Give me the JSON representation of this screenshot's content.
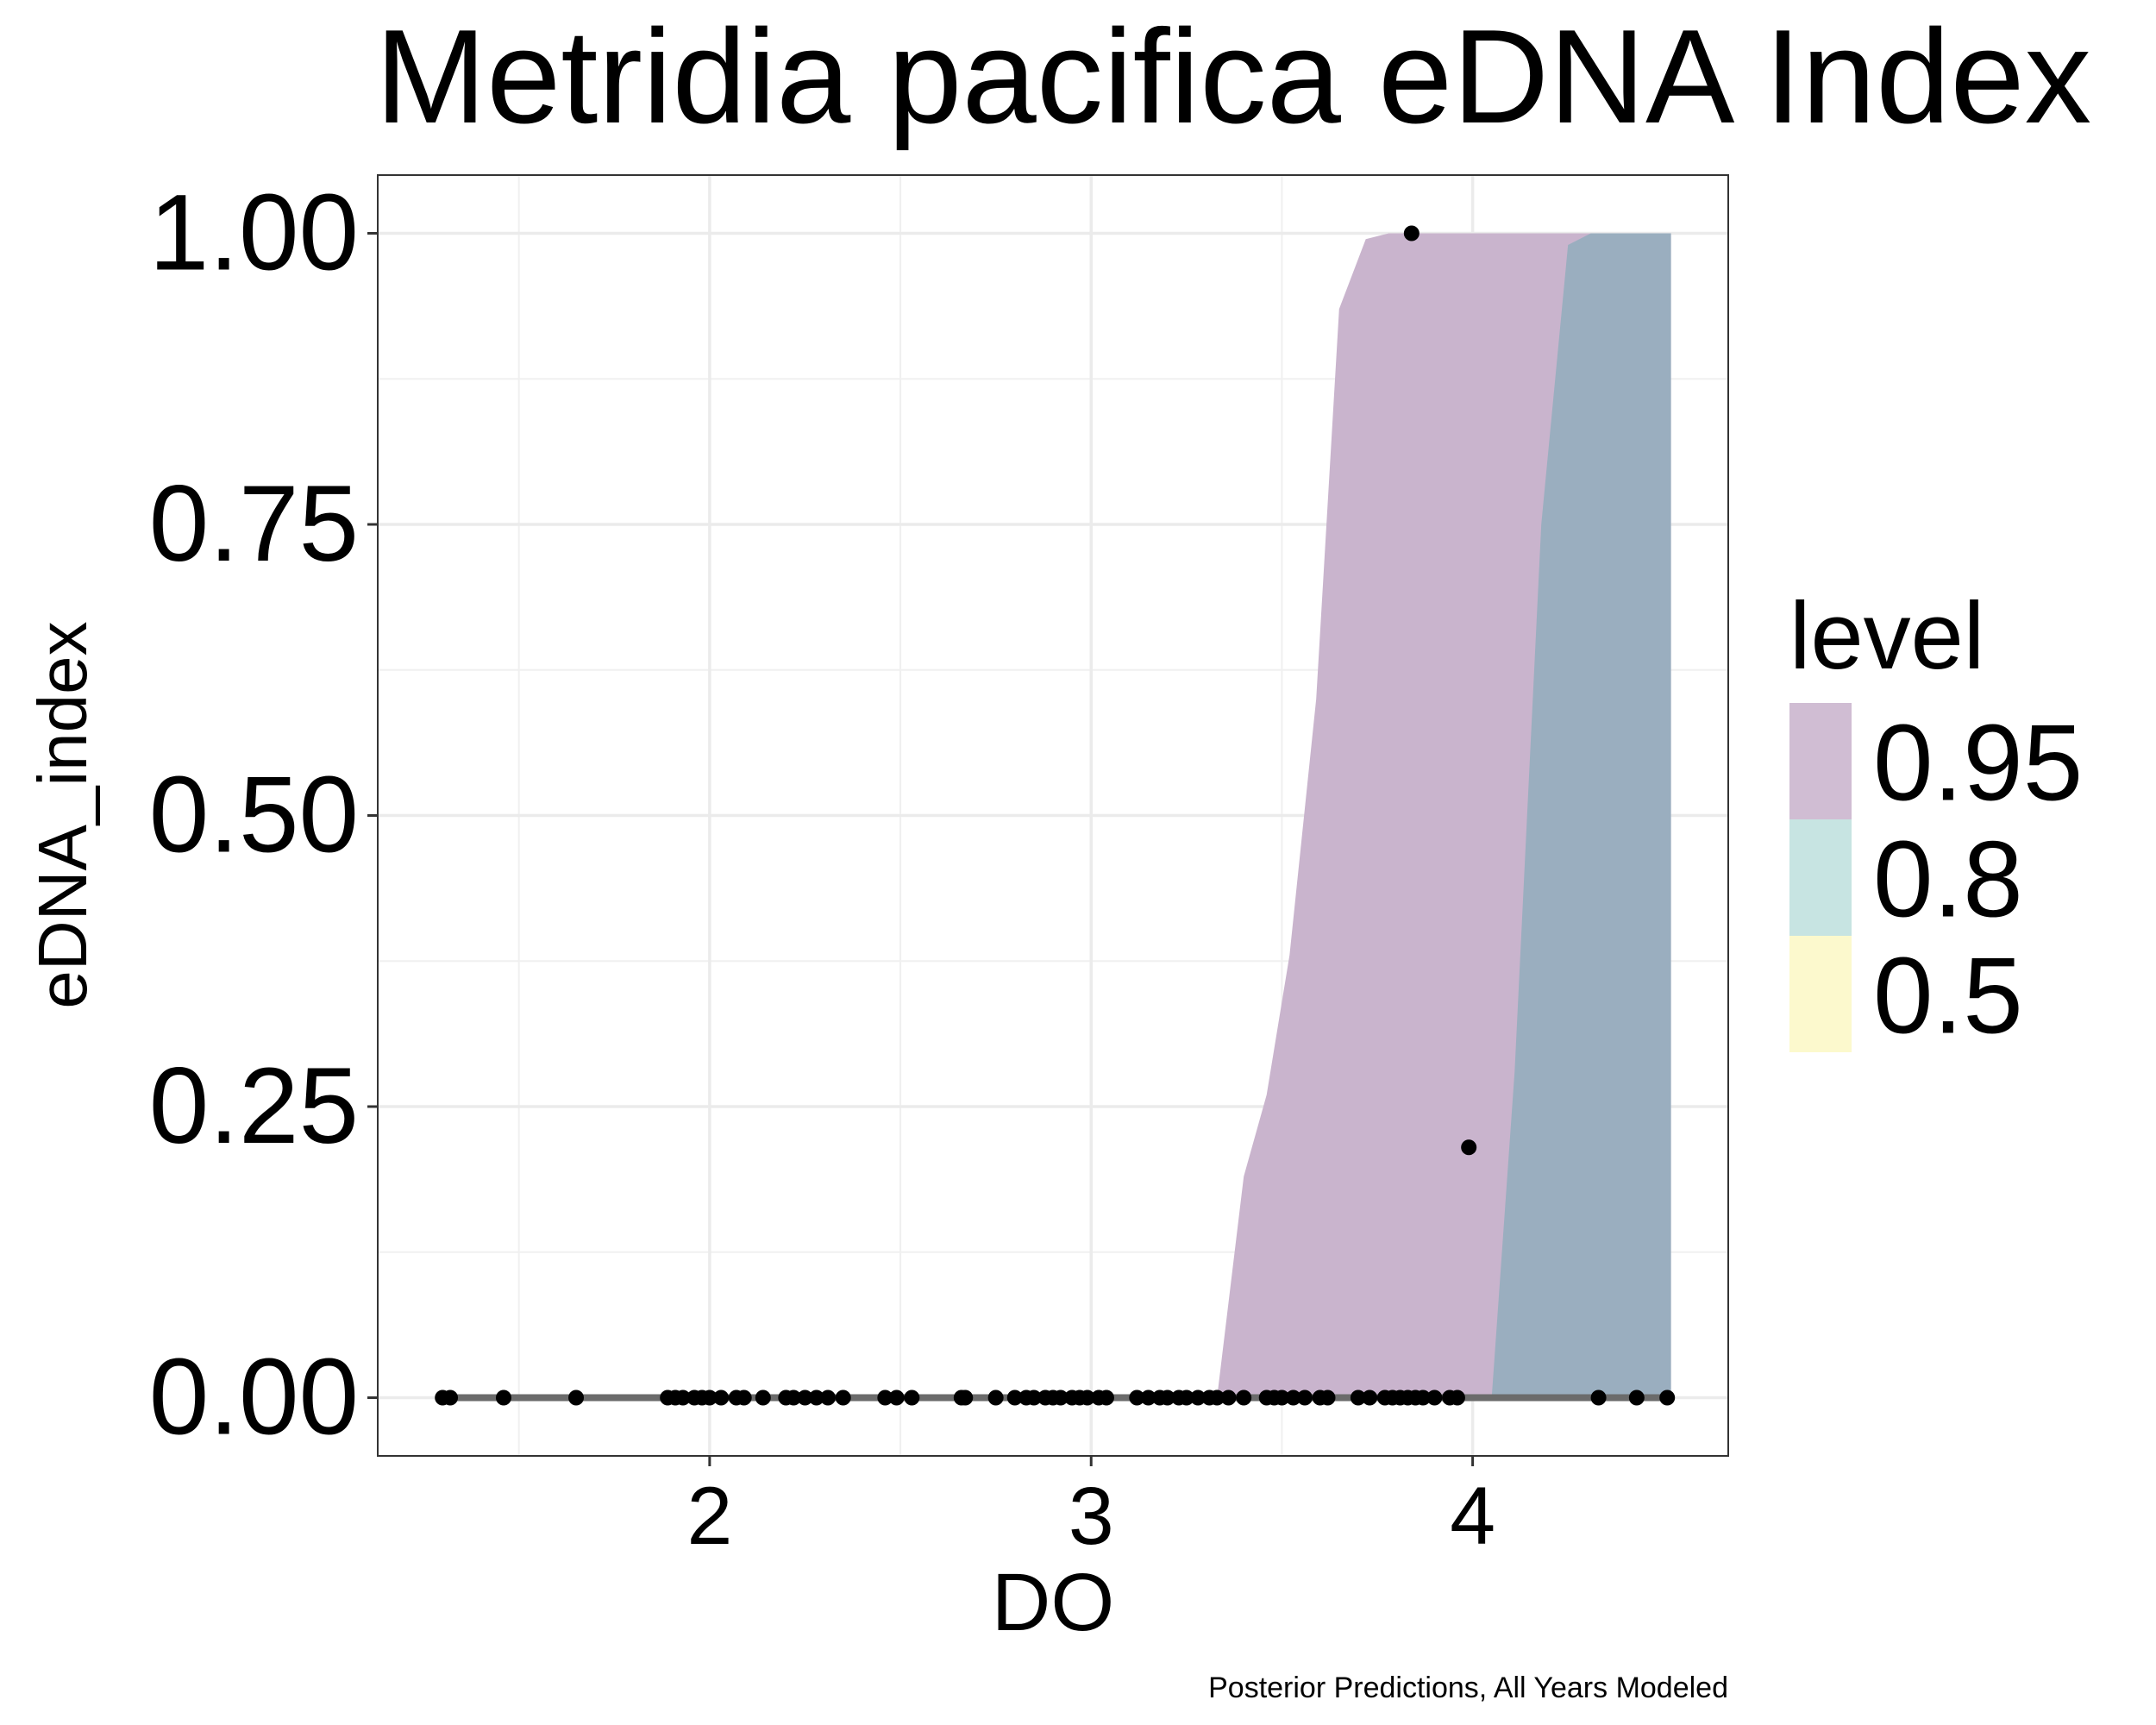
{
  "chart_data": {
    "type": "area",
    "title": "Metridia pacifica eDNA Index",
    "xlabel": "DO",
    "ylabel": "eDNA_index",
    "caption": "Posterior Predictions, All Years Modeled",
    "xlim": [
      1.13,
      4.67
    ],
    "ylim": [
      -0.05,
      1.05
    ],
    "x_ticks": [
      2,
      3,
      4
    ],
    "x_tick_labels": [
      "2",
      "3",
      "4"
    ],
    "y_ticks": [
      0,
      0.25,
      0.5,
      0.75,
      1
    ],
    "y_tick_labels": [
      "0.00",
      "0.25",
      "0.50",
      "0.75",
      "1.00"
    ],
    "grid": true,
    "legend": {
      "title": "level",
      "position": "right",
      "items": [
        {
          "label": "0.95",
          "color": "#d0bdd3"
        },
        {
          "label": "0.8",
          "color": "#c7e4e2"
        },
        {
          "label": "0.5",
          "color": "#fcf9cd"
        }
      ]
    },
    "bands": [
      {
        "level": "0.95",
        "color": "#c9b4cd",
        "x": [
          3.33,
          3.4,
          3.46,
          3.52,
          3.59,
          3.65,
          3.72,
          3.78,
          4.0,
          4.52
        ],
        "upper": [
          0.0,
          0.19,
          0.26,
          0.38,
          0.6,
          0.935,
          0.995,
          1.0,
          1.0,
          1.0
        ],
        "lower": [
          0.0,
          0.0,
          0.0,
          0.0,
          0.0,
          0.0,
          0.0,
          0.0,
          0.0,
          0.0
        ]
      },
      {
        "level": "0.8",
        "color": "#9aaebf",
        "x": [
          4.05,
          4.11,
          4.18,
          4.25,
          4.31,
          4.52
        ],
        "upper": [
          0.0,
          0.28,
          0.75,
          0.99,
          1.0,
          1.0
        ],
        "lower": [
          0.0,
          0.0,
          0.0,
          0.0,
          0.0,
          0.0
        ]
      }
    ],
    "median_line": {
      "x": [
        1.3,
        4.52
      ],
      "y": [
        0.0,
        0.0
      ],
      "color": "#6b6b6b"
    },
    "points": {
      "x": [
        1.3,
        1.32,
        1.46,
        1.65,
        1.89,
        1.91,
        1.93,
        1.96,
        1.98,
        2.0,
        2.03,
        2.07,
        2.09,
        2.14,
        2.2,
        2.22,
        2.25,
        2.28,
        2.31,
        2.35,
        2.46,
        2.49,
        2.53,
        2.66,
        2.67,
        2.75,
        2.8,
        2.83,
        2.85,
        2.88,
        2.9,
        2.92,
        2.95,
        2.97,
        2.99,
        3.02,
        3.04,
        3.12,
        3.15,
        3.18,
        3.2,
        3.23,
        3.25,
        3.28,
        3.31,
        3.33,
        3.36,
        3.4,
        3.46,
        3.48,
        3.5,
        3.53,
        3.56,
        3.6,
        3.62,
        3.7,
        3.73,
        3.77,
        3.79,
        3.81,
        3.83,
        3.85,
        3.87,
        3.9,
        3.94,
        3.96,
        4.33,
        4.43,
        4.51,
        3.84,
        3.99
      ],
      "y": [
        0,
        0,
        0,
        0,
        0,
        0,
        0,
        0,
        0,
        0,
        0,
        0,
        0,
        0,
        0,
        0,
        0,
        0,
        0,
        0,
        0,
        0,
        0,
        0,
        0,
        0,
        0,
        0,
        0,
        0,
        0,
        0,
        0,
        0,
        0,
        0,
        0,
        0,
        0,
        0,
        0,
        0,
        0,
        0,
        0,
        0,
        0,
        0,
        0,
        0,
        0,
        0,
        0,
        0,
        0,
        0,
        0,
        0,
        0,
        0,
        0,
        0,
        0,
        0,
        0,
        0,
        0,
        0,
        0,
        1.0,
        0.215
      ]
    }
  }
}
